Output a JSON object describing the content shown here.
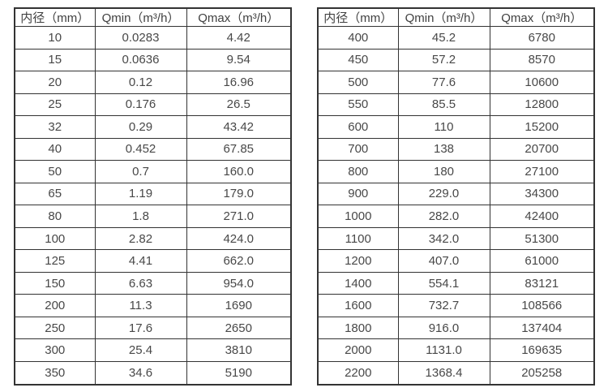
{
  "colors": {
    "background": "#ffffff",
    "border": "#333333",
    "text": "#484848"
  },
  "table_left": {
    "headers": [
      "内径（mm）",
      "Qmin（m³/h）",
      "Qmax（m³/h）"
    ],
    "rows": [
      [
        "10",
        "0.0283",
        "4.42"
      ],
      [
        "15",
        "0.0636",
        "9.54"
      ],
      [
        "20",
        "0.12",
        "16.96"
      ],
      [
        "25",
        "0.176",
        "26.5"
      ],
      [
        "32",
        "0.29",
        "43.42"
      ],
      [
        "40",
        "0.452",
        "67.85"
      ],
      [
        "50",
        "0.7",
        "160.0"
      ],
      [
        "65",
        "1.19",
        "179.0"
      ],
      [
        "80",
        "1.8",
        "271.0"
      ],
      [
        "100",
        "2.82",
        "424.0"
      ],
      [
        "125",
        "4.41",
        "662.0"
      ],
      [
        "150",
        "6.63",
        "954.0"
      ],
      [
        "200",
        "11.3",
        "1690"
      ],
      [
        "250",
        "17.6",
        "2650"
      ],
      [
        "300",
        "25.4",
        "3810"
      ],
      [
        "350",
        "34.6",
        "5190"
      ]
    ]
  },
  "table_right": {
    "headers": [
      "内径（mm）",
      "Qmin（m³/h）",
      "Qmax（m³/h）"
    ],
    "rows": [
      [
        "400",
        "45.2",
        "6780"
      ],
      [
        "450",
        "57.2",
        "8570"
      ],
      [
        "500",
        "77.6",
        "10600"
      ],
      [
        "550",
        "85.5",
        "12800"
      ],
      [
        "600",
        "110",
        "15200"
      ],
      [
        "700",
        "138",
        "20700"
      ],
      [
        "800",
        "180",
        "27100"
      ],
      [
        "900",
        "229.0",
        "34300"
      ],
      [
        "1000",
        "282.0",
        "42400"
      ],
      [
        "1100",
        "342.0",
        "51300"
      ],
      [
        "1200",
        "407.0",
        "61000"
      ],
      [
        "1400",
        "554.1",
        "83121"
      ],
      [
        "1600",
        "732.7",
        "108566"
      ],
      [
        "1800",
        "916.0",
        "137404"
      ],
      [
        "2000",
        "1131.0",
        "169635"
      ],
      [
        "2200",
        "1368.4",
        "205258"
      ]
    ]
  },
  "chart_data": [
    {
      "type": "table",
      "title": "",
      "columns": [
        "内径（mm）",
        "Qmin（m³/h）",
        "Qmax（m³/h）"
      ],
      "rows": [
        [
          10,
          0.0283,
          4.42
        ],
        [
          15,
          0.0636,
          9.54
        ],
        [
          20,
          0.12,
          16.96
        ],
        [
          25,
          0.176,
          26.5
        ],
        [
          32,
          0.29,
          43.42
        ],
        [
          40,
          0.452,
          67.85
        ],
        [
          50,
          0.7,
          160.0
        ],
        [
          65,
          1.19,
          179.0
        ],
        [
          80,
          1.8,
          271.0
        ],
        [
          100,
          2.82,
          424.0
        ],
        [
          125,
          4.41,
          662.0
        ],
        [
          150,
          6.63,
          954.0
        ],
        [
          200,
          11.3,
          1690
        ],
        [
          250,
          17.6,
          2650
        ],
        [
          300,
          25.4,
          3810
        ],
        [
          350,
          34.6,
          5190
        ]
      ]
    },
    {
      "type": "table",
      "title": "",
      "columns": [
        "内径（mm）",
        "Qmin（m³/h）",
        "Qmax（m³/h）"
      ],
      "rows": [
        [
          400,
          45.2,
          6780
        ],
        [
          450,
          57.2,
          8570
        ],
        [
          500,
          77.6,
          10600
        ],
        [
          550,
          85.5,
          12800
        ],
        [
          600,
          110,
          15200
        ],
        [
          700,
          138,
          20700
        ],
        [
          800,
          180,
          27100
        ],
        [
          900,
          229.0,
          34300
        ],
        [
          1000,
          282.0,
          42400
        ],
        [
          1100,
          342.0,
          51300
        ],
        [
          1200,
          407.0,
          61000
        ],
        [
          1400,
          554.1,
          83121
        ],
        [
          1600,
          732.7,
          108566
        ],
        [
          1800,
          916.0,
          137404
        ],
        [
          2000,
          1131.0,
          169635
        ],
        [
          2200,
          1368.4,
          205258
        ]
      ]
    }
  ]
}
